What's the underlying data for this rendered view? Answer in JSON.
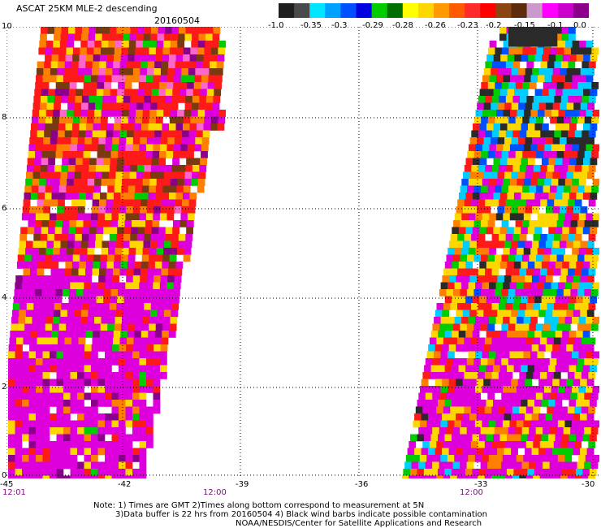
{
  "header": {
    "title": "ASCAT 25KM MLE-2 descending",
    "date": "20160504"
  },
  "legend": {
    "labels": [
      "-1.0",
      "-0.35",
      "-0.3",
      "-0.29",
      "-0.28",
      "-0.26",
      "-0.23",
      "-0.2",
      "-0.15",
      "-0.1",
      "0.0"
    ],
    "colors": [
      "#1e1e1e",
      "#4a4a4a",
      "#00e6ff",
      "#00a0ff",
      "#0050ff",
      "#0000e0",
      "#00cc00",
      "#006e00",
      "#ffff00",
      "#ffd700",
      "#ff9a00",
      "#ff5a00",
      "#ff2a2a",
      "#ff0000",
      "#8b4513",
      "#5c2c0c",
      "#cc99cc",
      "#ff00ff",
      "#cc00cc",
      "#8b008b"
    ]
  },
  "axes": {
    "y_ticks": [
      "10",
      "8",
      "6",
      "4",
      "2",
      "0"
    ],
    "x_ticks": [
      "-45",
      "-42",
      "-39",
      "-36",
      "-33",
      "-30"
    ],
    "time_labels": [
      "12:01",
      "12:00",
      "12:00"
    ]
  },
  "notes": [
    "Note: 1) Times are GMT 2)Times along bottom correspond to measurement at 5N",
    "3)Data buffer is 22 hrs from 20160504 4) Black wind barbs indicate possible contamination",
    "NOAA/NESDIS/Center for Satellite Applications and Research"
  ]
}
